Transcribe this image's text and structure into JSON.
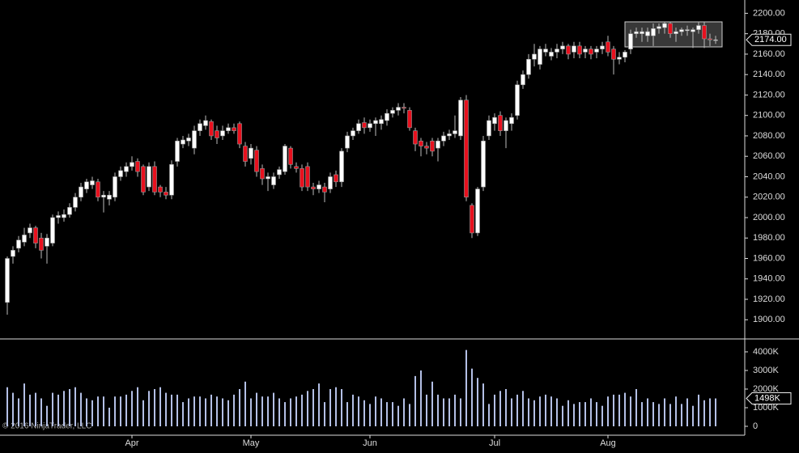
{
  "chart_data": [
    {
      "type": "candlestick",
      "categories": [
        null,
        null,
        null,
        null,
        null,
        null,
        null,
        null,
        null,
        null,
        null,
        null,
        null,
        null,
        null,
        null,
        null,
        null,
        null,
        null,
        null,
        null,
        "Apr",
        null,
        null,
        null,
        null,
        null,
        null,
        null,
        null,
        null,
        null,
        null,
        null,
        null,
        null,
        null,
        null,
        null,
        null,
        null,
        null,
        "May",
        null,
        null,
        null,
        null,
        null,
        null,
        null,
        null,
        null,
        null,
        null,
        null,
        null,
        null,
        null,
        null,
        null,
        null,
        null,
        null,
        "Jun",
        null,
        null,
        null,
        null,
        null,
        null,
        null,
        null,
        null,
        null,
        null,
        null,
        null,
        null,
        null,
        null,
        null,
        null,
        null,
        null,
        null,
        "Jul",
        null,
        null,
        null,
        null,
        null,
        null,
        null,
        null,
        null,
        null,
        null,
        null,
        null,
        null,
        null,
        null,
        null,
        null,
        null,
        "Aug",
        null,
        null,
        null,
        null,
        null,
        null,
        null,
        null,
        null,
        null,
        null,
        null,
        null,
        null,
        null,
        null,
        null,
        null,
        null
      ],
      "open": [
        1917,
        1962,
        1970,
        1976,
        1985,
        1990,
        1980,
        1972,
        1975,
        2000,
        2000,
        2003,
        2010,
        2020,
        2028,
        2032,
        2035,
        2020,
        2018,
        2020,
        2040,
        2045,
        2050,
        2055,
        2050,
        2030,
        2050,
        2030,
        2025,
        2022,
        2055,
        2072,
        2075,
        2068,
        2085,
        2090,
        2094,
        2085,
        2080,
        2085,
        2088,
        2092,
        2070,
        2058,
        2066,
        2048,
        2038,
        2032,
        2042,
        2045,
        2068,
        2050,
        2048,
        2050,
        2030,
        2028,
        2030,
        2028,
        2042,
        2035,
        2068,
        2080,
        2085,
        2093,
        2088,
        2092,
        2092,
        2095,
        2102,
        2105,
        2108,
        2105,
        2085,
        2075,
        2070,
        2075,
        2068,
        2075,
        2080,
        2082,
        2080,
        2115,
        2012,
        1985,
        2030,
        2080,
        2092,
        2100,
        2085,
        2092,
        2100,
        2130,
        2140,
        2155,
        2150,
        2162,
        2158,
        2162,
        2165,
        2168,
        2162,
        2168,
        2162,
        2165,
        2162,
        2165,
        2172,
        2165,
        2155,
        2157,
        2165,
        2180,
        2180,
        2178,
        2178,
        2185,
        2186,
        2190,
        2180,
        2182,
        2183,
        2182,
        2184,
        2188,
        2175,
        2174
      ],
      "high": [
        1962,
        1972,
        1982,
        1990,
        1994,
        1992,
        1985,
        1984,
        2003,
        2006,
        2008,
        2014,
        2024,
        2034,
        2038,
        2040,
        2038,
        2026,
        2026,
        2044,
        2050,
        2054,
        2060,
        2058,
        2052,
        2054,
        2055,
        2032,
        2030,
        2056,
        2078,
        2080,
        2082,
        2090,
        2096,
        2100,
        2096,
        2090,
        2090,
        2092,
        2092,
        2094,
        2074,
        2072,
        2070,
        2052,
        2044,
        2044,
        2050,
        2072,
        2070,
        2054,
        2052,
        2054,
        2034,
        2036,
        2034,
        2044,
        2046,
        2068,
        2084,
        2088,
        2096,
        2098,
        2096,
        2098,
        2100,
        2106,
        2108,
        2112,
        2112,
        2108,
        2088,
        2078,
        2074,
        2078,
        2078,
        2084,
        2086,
        2100,
        2118,
        2120,
        2014,
        2030,
        2080,
        2100,
        2102,
        2104,
        2098,
        2102,
        2134,
        2144,
        2160,
        2170,
        2168,
        2170,
        2166,
        2170,
        2172,
        2170,
        2172,
        2172,
        2168,
        2168,
        2168,
        2172,
        2178,
        2168,
        2162,
        2164,
        2184,
        2186,
        2186,
        2186,
        2190,
        2190,
        2192,
        2192,
        2186,
        2186,
        2188,
        2186,
        2192,
        2192,
        2180,
        2178
      ],
      "low": [
        1905,
        1955,
        1966,
        1972,
        1980,
        1970,
        1960,
        1955,
        1972,
        1994,
        1996,
        2000,
        2006,
        2016,
        2024,
        2028,
        2016,
        2005,
        2012,
        2016,
        2036,
        2040,
        2046,
        2040,
        2022,
        2026,
        2022,
        2020,
        2018,
        2018,
        2050,
        2068,
        2070,
        2062,
        2080,
        2086,
        2076,
        2072,
        2076,
        2082,
        2082,
        2068,
        2050,
        2052,
        2040,
        2032,
        2026,
        2028,
        2038,
        2042,
        2048,
        2044,
        2026,
        2026,
        2022,
        2024,
        2015,
        2024,
        2030,
        2030,
        2064,
        2076,
        2082,
        2082,
        2084,
        2080,
        2086,
        2090,
        2098,
        2100,
        2102,
        2085,
        2065,
        2060,
        2062,
        2060,
        2055,
        2070,
        2076,
        2078,
        2076,
        2016,
        1980,
        1982,
        2026,
        2076,
        2085,
        2080,
        2068,
        2085,
        2096,
        2126,
        2136,
        2148,
        2145,
        2158,
        2154,
        2156,
        2160,
        2155,
        2156,
        2156,
        2156,
        2155,
        2156,
        2160,
        2158,
        2140,
        2150,
        2152,
        2160,
        2176,
        2172,
        2172,
        2168,
        2180,
        2180,
        2176,
        2172,
        2178,
        2178,
        2166,
        2180,
        2166,
        2168,
        2170
      ],
      "close": [
        1960,
        1968,
        1978,
        1983,
        1990,
        1975,
        1968,
        1980,
        2000,
        2002,
        2003,
        2010,
        2020,
        2030,
        2035,
        2036,
        2020,
        2022,
        2022,
        2040,
        2046,
        2050,
        2054,
        2045,
        2025,
        2050,
        2025,
        2025,
        2022,
        2052,
        2075,
        2076,
        2078,
        2085,
        2092,
        2095,
        2080,
        2078,
        2085,
        2088,
        2085,
        2072,
        2055,
        2068,
        2045,
        2038,
        2040,
        2040,
        2047,
        2070,
        2052,
        2048,
        2030,
        2030,
        2028,
        2032,
        2025,
        2040,
        2035,
        2065,
        2080,
        2085,
        2092,
        2088,
        2092,
        2095,
        2096,
        2102,
        2105,
        2108,
        2107,
        2088,
        2072,
        2070,
        2068,
        2065,
        2075,
        2080,
        2082,
        2085,
        2115,
        2020,
        1985,
        2028,
        2075,
        2095,
        2098,
        2085,
        2095,
        2098,
        2130,
        2140,
        2155,
        2160,
        2165,
        2165,
        2162,
        2165,
        2168,
        2160,
        2168,
        2160,
        2165,
        2160,
        2165,
        2168,
        2162,
        2155,
        2157,
        2162,
        2180,
        2182,
        2182,
        2182,
        2185,
        2187,
        2190,
        2180,
        2182,
        2184,
        2184,
        2184,
        2188,
        2175,
        2174,
        2174
      ],
      "up_color": "#ffffff",
      "down_color": "#e8101e",
      "ylim": [
        1882,
        2213
      ],
      "yticks": [
        {
          "value": 1900,
          "label": "1900.00"
        },
        {
          "value": 1920,
          "label": "1920.00"
        },
        {
          "value": 1940,
          "label": "1940.00"
        },
        {
          "value": 1960,
          "label": "1960.00"
        },
        {
          "value": 1980,
          "label": "1980.00"
        },
        {
          "value": 2000,
          "label": "2000.00"
        },
        {
          "value": 2020,
          "label": "2020.00"
        },
        {
          "value": 2040,
          "label": "2040.00"
        },
        {
          "value": 2060,
          "label": "2060.00"
        },
        {
          "value": 2080,
          "label": "2080.00"
        },
        {
          "value": 2100,
          "label": "2100.00"
        },
        {
          "value": 2120,
          "label": "2120.00"
        },
        {
          "value": 2140,
          "label": "2140.00"
        },
        {
          "value": 2160,
          "label": "2160.00"
        },
        {
          "value": 2180,
          "label": "2180.00"
        },
        {
          "value": 2200,
          "label": "2200.00"
        }
      ],
      "current_price": {
        "value": 2174,
        "label": "2174.00"
      }
    },
    {
      "type": "bar",
      "values": [
        2100000,
        1800000,
        1500000,
        2300000,
        1700000,
        1800000,
        1500000,
        1100000,
        1800000,
        1700000,
        1900000,
        2000000,
        2100000,
        1800000,
        1500000,
        1400000,
        1600000,
        1600000,
        1000000,
        1600000,
        1600000,
        1700000,
        1900000,
        2100000,
        1400000,
        1900000,
        2000000,
        2100000,
        1800000,
        1700000,
        1700000,
        1300000,
        1500000,
        1600000,
        1600000,
        1500000,
        1700000,
        1600000,
        1500000,
        1400000,
        1700000,
        2000000,
        2400000,
        1500000,
        1800000,
        1600000,
        1600000,
        1800000,
        1500000,
        1300000,
        1500000,
        1600000,
        1700000,
        1900000,
        2000000,
        2300000,
        1300000,
        2000000,
        2100000,
        2000000,
        1300000,
        1700000,
        1600000,
        1400000,
        1200000,
        1600000,
        1500000,
        1300000,
        1300000,
        1100000,
        1500000,
        1200000,
        2700000,
        3000000,
        1700000,
        2400000,
        1700000,
        1500000,
        1500000,
        1700000,
        1500000,
        4100000,
        3100000,
        2600000,
        2300000,
        1200000,
        1700000,
        1900000,
        2000000,
        1500000,
        1700000,
        1900000,
        1500000,
        1400000,
        1600000,
        1700000,
        1600000,
        1500000,
        1100000,
        1400000,
        1200000,
        1300000,
        1300000,
        1500000,
        1300000,
        1100000,
        1600000,
        1700000,
        1700000,
        1800000,
        1600000,
        2000000,
        1300000,
        1500000,
        1300000,
        1200000,
        1500000,
        1200000,
        1600000,
        1200000,
        1500000,
        1100000,
        1700000,
        1400000,
        1500000,
        1498000
      ],
      "color": "#b4c0e6",
      "ylim": [
        0,
        4650000
      ],
      "yticks": [
        0,
        {
          "value": 1000000,
          "label": "1000K"
        },
        {
          "value": 2000000,
          "label": "2000K"
        },
        {
          "value": 3000000,
          "label": "3000K"
        },
        {
          "value": 4000000,
          "label": "4000K"
        }
      ],
      "current_volume": {
        "value": 1498000,
        "label": "1498K"
      }
    }
  ],
  "copyright": "© 2016 NinjaTrader, LLC"
}
